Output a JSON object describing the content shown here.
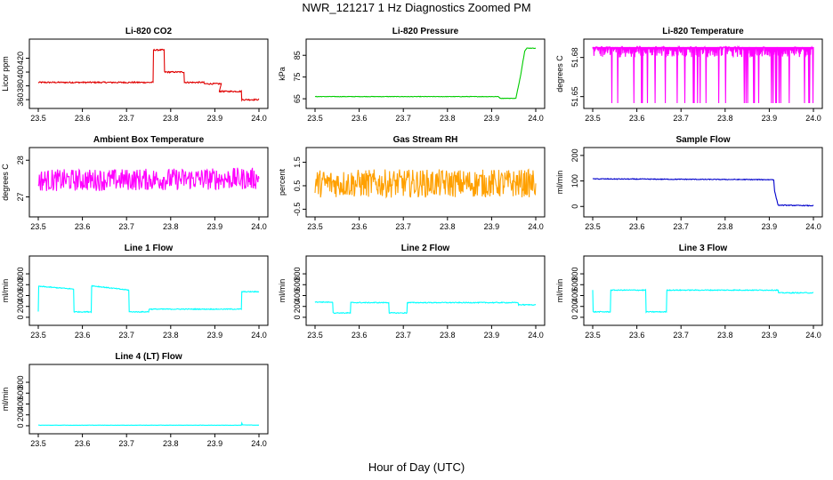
{
  "figure": {
    "title": "NWR_121217  1 Hz Diagnostics Zoomed PM",
    "xlabel": "Hour of Day (UTC)"
  },
  "chart_data": [
    {
      "type": "line",
      "title": "Li-820 CO2",
      "ylabel": "Licor ppm",
      "xlim": [
        23.5,
        24.0
      ],
      "xticks": [
        "23.5",
        "23.6",
        "23.7",
        "23.8",
        "23.9",
        "24.0"
      ],
      "ylim": [
        355,
        440
      ],
      "yticks": [
        360,
        380,
        400,
        420
      ],
      "color": "#e00000",
      "series": [
        {
          "x": [
            23.5,
            23.76,
            23.761,
            23.785,
            23.786,
            23.83,
            23.831,
            23.875,
            23.876,
            23.915,
            23.91,
            23.96,
            23.961,
            24.0
          ],
          "y": [
            385,
            385,
            432,
            432,
            400,
            400,
            385,
            385,
            383,
            383,
            372,
            372,
            360,
            360
          ]
        }
      ],
      "noise": 1
    },
    {
      "type": "line",
      "title": "Li-820 Pressure",
      "ylabel": "kPa",
      "xlim": [
        23.5,
        24.0
      ],
      "xticks": [
        "23.5",
        "23.6",
        "23.7",
        "23.8",
        "23.9",
        "24.0"
      ],
      "ylim": [
        63,
        90
      ],
      "yticks": [
        65,
        75,
        85
      ],
      "color": "#00cc00",
      "series": [
        {
          "x": [
            23.5,
            23.915,
            23.92,
            23.955,
            23.965,
            23.975,
            23.98,
            24.0
          ],
          "y": [
            66,
            66,
            65.2,
            65.2,
            75,
            87,
            88.3,
            88.3
          ]
        }
      ],
      "noise": 0.1
    },
    {
      "type": "line",
      "title": "Li-820 Temperature",
      "ylabel": "degrees C",
      "xlim": [
        23.5,
        24.0
      ],
      "xticks": [
        "23.5",
        "23.6",
        "23.7",
        "23.8",
        "23.9",
        "24.0"
      ],
      "ylim": [
        51.645,
        51.69
      ],
      "yticks": [
        51.65,
        51.68
      ],
      "color": "#ff00ff",
      "series": [
        {
          "x": [
            23.5,
            24.0
          ],
          "y": [
            51.665,
            51.665
          ]
        }
      ],
      "band": [
        51.645,
        51.688
      ],
      "noise": 0
    },
    {
      "type": "line",
      "title": "Ambient Box Temperature",
      "ylabel": "degrees C",
      "xlim": [
        23.5,
        24.0
      ],
      "xticks": [
        "23.5",
        "23.6",
        "23.7",
        "23.8",
        "23.9",
        "24.0"
      ],
      "ylim": [
        26.6,
        28.2
      ],
      "yticks": [
        27.0,
        28.0
      ],
      "color": "#ff00ff",
      "series": [
        {
          "x": [
            23.5,
            24.0
          ],
          "y": [
            27.45,
            27.5
          ]
        }
      ],
      "noise": 0.3
    },
    {
      "type": "line",
      "title": "Gas Stream RH",
      "ylabel": "percent",
      "xlim": [
        23.5,
        24.0
      ],
      "xticks": [
        "23.5",
        "23.6",
        "23.7",
        "23.8",
        "23.9",
        "24.0"
      ],
      "ylim": [
        -0.6,
        1.9
      ],
      "yticks": [
        -0.5,
        0.5,
        1.5
      ],
      "color": "#ffa000",
      "series": [
        {
          "x": [
            23.5,
            24.0
          ],
          "y": [
            0.6,
            0.6
          ]
        }
      ],
      "noise": 0.6
    },
    {
      "type": "line",
      "title": "Sample Flow",
      "ylabel": "ml/min",
      "xlim": [
        23.5,
        24.0
      ],
      "xticks": [
        "23.5",
        "23.6",
        "23.7",
        "23.8",
        "23.9",
        "24.0"
      ],
      "ylim": [
        -20,
        210
      ],
      "yticks": [
        0,
        100,
        200
      ],
      "color": "#0000cc",
      "series": [
        {
          "x": [
            23.5,
            23.91,
            23.912,
            23.92,
            24.0
          ],
          "y": [
            108,
            105,
            60,
            5,
            3
          ]
        }
      ],
      "noise": 1.5
    },
    {
      "type": "line",
      "title": "Line 1 Flow",
      "ylabel": "ml/min",
      "xlim": [
        23.5,
        24.0
      ],
      "xticks": [
        "23.5",
        "23.6",
        "23.7",
        "23.8",
        "23.9",
        "24.0"
      ],
      "ylim": [
        -50,
        1030
      ],
      "yticks": [
        0,
        200,
        400,
        600,
        800
      ],
      "color": "#00ffff",
      "series": [
        {
          "x": [
            23.5,
            23.501,
            23.58,
            23.581,
            23.62,
            23.621,
            23.705,
            23.706,
            23.75,
            23.751,
            23.96,
            23.961,
            24.0
          ],
          "y": [
            100,
            570,
            520,
            100,
            100,
            580,
            500,
            100,
            100,
            150,
            150,
            470,
            470
          ]
        }
      ],
      "noise": 8
    },
    {
      "type": "line",
      "title": "Line 2 Flow",
      "ylabel": "ml/min",
      "xlim": [
        23.5,
        24.0
      ],
      "xticks": [
        "23.5",
        "23.6",
        "23.7",
        "23.8",
        "23.9",
        "24.0"
      ],
      "ylim": [
        -50,
        1030
      ],
      "yticks": [
        0,
        200,
        400,
        600,
        800
      ],
      "color": "#00ffff",
      "series": [
        {
          "x": [
            23.5,
            23.54,
            23.541,
            23.58,
            23.581,
            23.667,
            23.668,
            23.708,
            23.709,
            23.96,
            23.961,
            24.0
          ],
          "y": [
            280,
            280,
            80,
            80,
            270,
            270,
            80,
            80,
            270,
            270,
            230,
            230
          ]
        }
      ],
      "noise": 8
    },
    {
      "type": "line",
      "title": "Line 3 Flow",
      "ylabel": "ml/min",
      "xlim": [
        23.5,
        24.0
      ],
      "xticks": [
        "23.5",
        "23.6",
        "23.7",
        "23.8",
        "23.9",
        "24.0"
      ],
      "ylim": [
        -50,
        1030
      ],
      "yticks": [
        0,
        200,
        400,
        600,
        800
      ],
      "color": "#00ffff",
      "series": [
        {
          "x": [
            23.5,
            23.501,
            23.54,
            23.541,
            23.62,
            23.621,
            23.667,
            23.668,
            23.92,
            23.921,
            24.0
          ],
          "y": [
            500,
            100,
            100,
            500,
            500,
            100,
            100,
            500,
            500,
            450,
            450
          ]
        }
      ],
      "noise": 8
    },
    {
      "type": "line",
      "title": "Line 4 (LT) Flow",
      "ylabel": "ml/min",
      "xlim": [
        23.5,
        24.0
      ],
      "xticks": [
        "23.5",
        "23.6",
        "23.7",
        "23.8",
        "23.9",
        "24.0"
      ],
      "ylim": [
        -50,
        1030
      ],
      "yticks": [
        0,
        200,
        400,
        600,
        800
      ],
      "color": "#00ffff",
      "series": [
        {
          "x": [
            23.5,
            23.96,
            23.961,
            23.963,
            24.0
          ],
          "y": [
            10,
            10,
            50,
            15,
            10
          ]
        }
      ],
      "noise": 2
    }
  ]
}
